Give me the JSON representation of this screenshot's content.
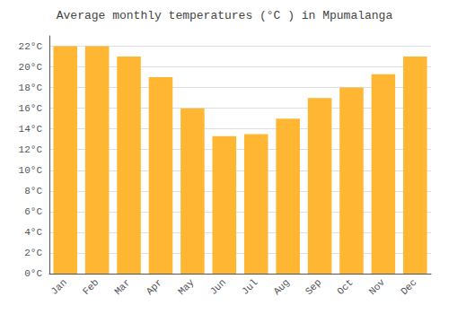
{
  "chart_data": {
    "type": "bar",
    "title": "Average monthly temperatures (°C ) in Mpumalanga",
    "categories": [
      "Jan",
      "Feb",
      "Mar",
      "Apr",
      "May",
      "Jun",
      "Jul",
      "Aug",
      "Sep",
      "Oct",
      "Nov",
      "Dec"
    ],
    "values": [
      22,
      22,
      21,
      19,
      16,
      13.3,
      13.5,
      15,
      17,
      18,
      19.3,
      21
    ],
    "color": "#FFB733",
    "ylim": [
      0,
      23
    ],
    "yticks": [
      {
        "value": 0,
        "label": "0°C"
      },
      {
        "value": 2,
        "label": "2°C"
      },
      {
        "value": 4,
        "label": "4°C"
      },
      {
        "value": 6,
        "label": "6°C"
      },
      {
        "value": 8,
        "label": "8°C"
      },
      {
        "value": 10,
        "label": "10°C"
      },
      {
        "value": 12,
        "label": "12°C"
      },
      {
        "value": 14,
        "label": "14°C"
      },
      {
        "value": 16,
        "label": "16°C"
      },
      {
        "value": 18,
        "label": "18°C"
      },
      {
        "value": 20,
        "label": "20°C"
      },
      {
        "value": 22,
        "label": "22°C"
      }
    ],
    "grid": true
  }
}
